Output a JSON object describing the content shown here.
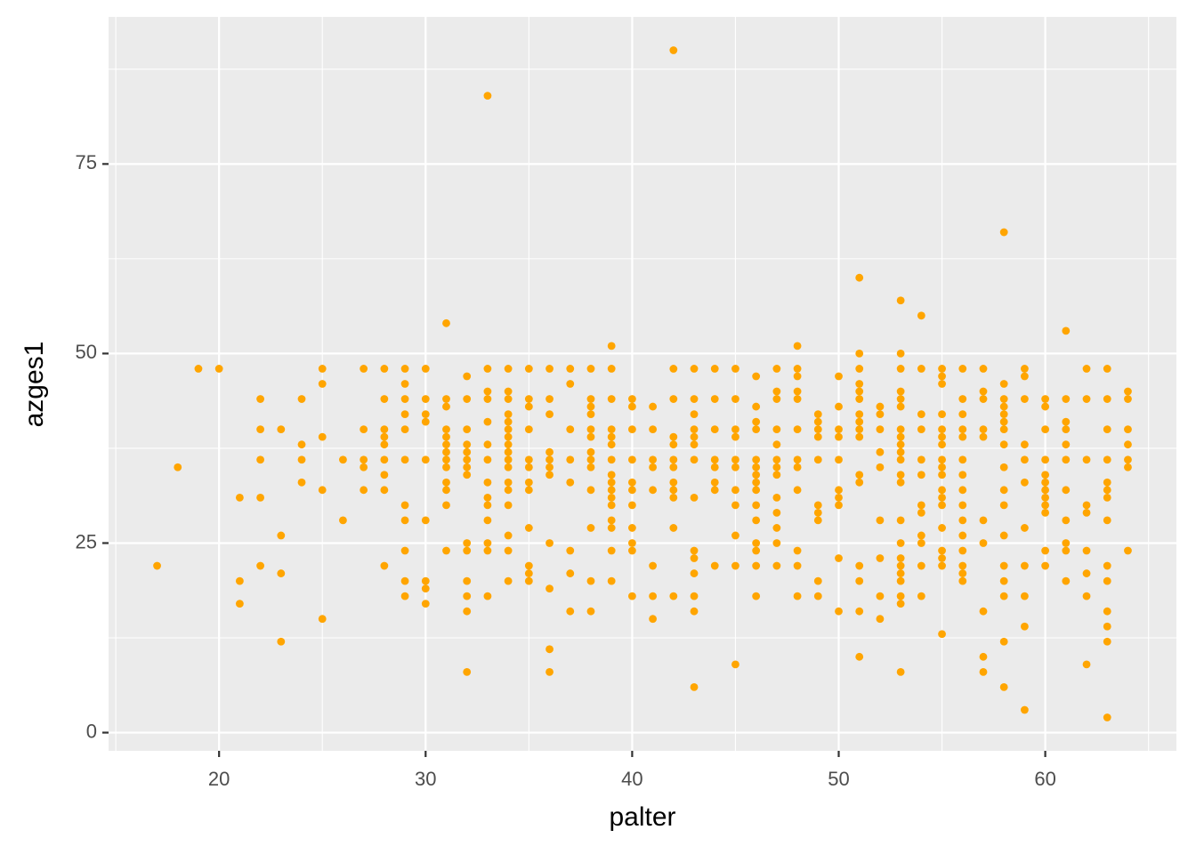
{
  "chart_data": {
    "type": "scatter",
    "x_label": "palter",
    "y_label": "azges1",
    "color": "#ffa500",
    "grid": true,
    "xlim": [
      14.65,
      66.35
    ],
    "ylim": [
      -2.4,
      94.4
    ],
    "xticks": [
      20,
      30,
      40,
      50,
      60
    ],
    "yticks": [
      0,
      25,
      50,
      75
    ],
    "x": [
      17,
      18,
      19,
      20,
      21,
      21,
      21,
      22,
      22,
      22,
      22,
      22,
      23,
      23,
      23,
      23,
      24,
      24,
      24,
      24,
      25,
      25,
      25,
      25,
      25,
      26,
      26,
      27,
      27,
      27,
      27,
      27,
      28,
      28,
      28,
      28,
      28,
      28,
      28,
      28,
      28,
      29,
      29,
      29,
      29,
      29,
      29,
      29,
      29,
      29,
      29,
      29,
      30,
      30,
      30,
      30,
      30,
      30,
      30,
      30,
      30,
      31,
      31,
      31,
      31,
      31,
      31,
      31,
      31,
      31,
      31,
      31,
      31,
      31,
      32,
      32,
      32,
      32,
      32,
      32,
      32,
      32,
      32,
      32,
      32,
      32,
      32,
      32,
      33,
      33,
      33,
      33,
      33,
      33,
      33,
      33,
      33,
      33,
      33,
      33,
      33,
      33,
      34,
      34,
      34,
      34,
      34,
      34,
      34,
      34,
      34,
      34,
      34,
      34,
      34,
      34,
      34,
      34,
      34,
      35,
      35,
      35,
      35,
      35,
      35,
      35,
      35,
      35,
      35,
      35,
      35,
      36,
      36,
      36,
      36,
      36,
      36,
      36,
      36,
      36,
      36,
      36,
      37,
      37,
      37,
      37,
      37,
      37,
      37,
      37,
      38,
      38,
      38,
      38,
      38,
      38,
      38,
      38,
      38,
      38,
      38,
      38,
      38,
      39,
      39,
      39,
      39,
      39,
      39,
      39,
      39,
      39,
      39,
      39,
      39,
      39,
      39,
      39,
      39,
      40,
      40,
      40,
      40,
      40,
      40,
      40,
      40,
      40,
      40,
      40,
      41,
      41,
      41,
      41,
      41,
      41,
      41,
      41,
      42,
      42,
      42,
      42,
      42,
      42,
      42,
      42,
      42,
      42,
      42,
      42,
      43,
      43,
      43,
      43,
      43,
      43,
      43,
      43,
      43,
      43,
      43,
      43,
      43,
      43,
      44,
      44,
      44,
      44,
      44,
      44,
      44,
      44,
      45,
      45,
      45,
      45,
      45,
      45,
      45,
      45,
      45,
      45,
      45,
      46,
      46,
      46,
      46,
      46,
      46,
      46,
      46,
      46,
      46,
      46,
      46,
      46,
      46,
      46,
      47,
      47,
      47,
      47,
      47,
      47,
      47,
      47,
      47,
      47,
      47,
      47,
      47,
      48,
      48,
      48,
      48,
      48,
      48,
      48,
      48,
      48,
      48,
      48,
      48,
      49,
      49,
      49,
      49,
      49,
      49,
      49,
      49,
      49,
      49,
      50,
      50,
      50,
      50,
      50,
      50,
      50,
      50,
      50,
      50,
      51,
      51,
      51,
      51,
      51,
      51,
      51,
      51,
      51,
      51,
      51,
      51,
      51,
      51,
      51,
      51,
      52,
      52,
      52,
      52,
      52,
      52,
      52,
      52,
      52,
      53,
      53,
      53,
      53,
      53,
      53,
      53,
      53,
      53,
      53,
      53,
      53,
      53,
      53,
      53,
      53,
      53,
      53,
      53,
      53,
      53,
      53,
      54,
      54,
      54,
      54,
      54,
      54,
      54,
      54,
      54,
      54,
      54,
      54,
      55,
      55,
      55,
      55,
      55,
      55,
      55,
      55,
      55,
      55,
      55,
      55,
      55,
      55,
      55,
      55,
      55,
      55,
      56,
      56,
      56,
      56,
      56,
      56,
      56,
      56,
      56,
      56,
      56,
      56,
      56,
      56,
      56,
      57,
      57,
      57,
      57,
      57,
      57,
      57,
      57,
      57,
      57,
      58,
      58,
      58,
      58,
      58,
      58,
      58,
      58,
      58,
      58,
      58,
      58,
      58,
      58,
      58,
      58,
      58,
      59,
      59,
      59,
      59,
      59,
      59,
      59,
      59,
      59,
      59,
      59,
      60,
      60,
      60,
      60,
      60,
      60,
      60,
      60,
      60,
      60,
      60,
      60,
      61,
      61,
      61,
      61,
      61,
      61,
      61,
      61,
      61,
      61,
      61,
      62,
      62,
      62,
      62,
      62,
      62,
      62,
      62,
      62,
      63,
      63,
      63,
      63,
      63,
      63,
      63,
      63,
      63,
      63,
      63,
      63,
      63,
      63,
      64,
      64,
      64,
      64,
      64,
      64,
      64
    ],
    "values": [
      22,
      35,
      48,
      48,
      31,
      20,
      17,
      44,
      40,
      36,
      31,
      22,
      40,
      26,
      21,
      12,
      44,
      38,
      36,
      33,
      48,
      46,
      39,
      32,
      15,
      36,
      28,
      48,
      40,
      36,
      35,
      32,
      48,
      44,
      40,
      39,
      38,
      36,
      34,
      32,
      22,
      48,
      46,
      44,
      42,
      40,
      36,
      30,
      28,
      24,
      20,
      18,
      48,
      44,
      42,
      41,
      36,
      28,
      20,
      19,
      17,
      54,
      44,
      43,
      40,
      39,
      38,
      37,
      36,
      35,
      33,
      32,
      30,
      24,
      47,
      44,
      40,
      38,
      37,
      36,
      35,
      34,
      25,
      24,
      20,
      18,
      16,
      8,
      84,
      48,
      45,
      44,
      41,
      38,
      36,
      33,
      31,
      30,
      28,
      25,
      24,
      18,
      48,
      45,
      44,
      42,
      41,
      40,
      39,
      38,
      37,
      36,
      35,
      33,
      32,
      30,
      26,
      24,
      20,
      48,
      44,
      43,
      40,
      36,
      35,
      33,
      32,
      27,
      22,
      21,
      20,
      48,
      44,
      42,
      37,
      36,
      35,
      34,
      25,
      19,
      11,
      8,
      48,
      46,
      40,
      36,
      33,
      24,
      21,
      16,
      48,
      44,
      43,
      42,
      40,
      39,
      37,
      36,
      35,
      32,
      27,
      20,
      16,
      51,
      48,
      44,
      40,
      39,
      38,
      36,
      34,
      33,
      32,
      31,
      30,
      28,
      27,
      24,
      20,
      44,
      43,
      40,
      36,
      33,
      32,
      30,
      27,
      25,
      24,
      18,
      43,
      40,
      36,
      35,
      32,
      22,
      18,
      15,
      90,
      48,
      44,
      39,
      38,
      36,
      35,
      33,
      32,
      31,
      27,
      18,
      48,
      44,
      42,
      40,
      39,
      38,
      36,
      31,
      24,
      23,
      21,
      18,
      16,
      6,
      48,
      44,
      40,
      36,
      35,
      33,
      32,
      22,
      48,
      44,
      40,
      39,
      36,
      35,
      32,
      30,
      26,
      22,
      9,
      47,
      43,
      41,
      40,
      36,
      35,
      34,
      33,
      32,
      30,
      28,
      25,
      24,
      22,
      18,
      48,
      45,
      44,
      40,
      38,
      36,
      35,
      34,
      31,
      29,
      27,
      25,
      22,
      51,
      48,
      47,
      45,
      44,
      40,
      36,
      35,
      32,
      24,
      22,
      18,
      42,
      41,
      40,
      39,
      36,
      30,
      29,
      28,
      20,
      18,
      47,
      43,
      40,
      39,
      36,
      32,
      31,
      30,
      23,
      16,
      60,
      50,
      48,
      46,
      45,
      44,
      42,
      41,
      40,
      39,
      34,
      33,
      22,
      20,
      16,
      10,
      43,
      42,
      40,
      37,
      35,
      28,
      23,
      18,
      15,
      57,
      50,
      48,
      45,
      44,
      43,
      40,
      39,
      38,
      37,
      36,
      34,
      33,
      28,
      25,
      23,
      22,
      21,
      20,
      18,
      17,
      8,
      55,
      48,
      42,
      40,
      36,
      34,
      30,
      29,
      26,
      25,
      22,
      18,
      48,
      47,
      46,
      42,
      40,
      39,
      38,
      36,
      35,
      34,
      32,
      31,
      30,
      27,
      24,
      23,
      22,
      13,
      48,
      44,
      42,
      40,
      39,
      36,
      34,
      32,
      30,
      28,
      26,
      24,
      22,
      21,
      20,
      48,
      45,
      44,
      40,
      39,
      28,
      25,
      16,
      10,
      8,
      66,
      46,
      44,
      43,
      42,
      41,
      40,
      38,
      35,
      32,
      30,
      26,
      22,
      20,
      18,
      12,
      6,
      48,
      47,
      44,
      38,
      36,
      33,
      27,
      22,
      18,
      14,
      3,
      44,
      43,
      40,
      36,
      34,
      33,
      32,
      31,
      30,
      29,
      24,
      22,
      53,
      44,
      41,
      40,
      38,
      36,
      32,
      28,
      25,
      24,
      20,
      48,
      44,
      36,
      30,
      29,
      24,
      21,
      18,
      9,
      48,
      44,
      40,
      36,
      33,
      32,
      31,
      28,
      22,
      20,
      16,
      14,
      12,
      2,
      45,
      44,
      40,
      38,
      36,
      35,
      24
    ]
  }
}
